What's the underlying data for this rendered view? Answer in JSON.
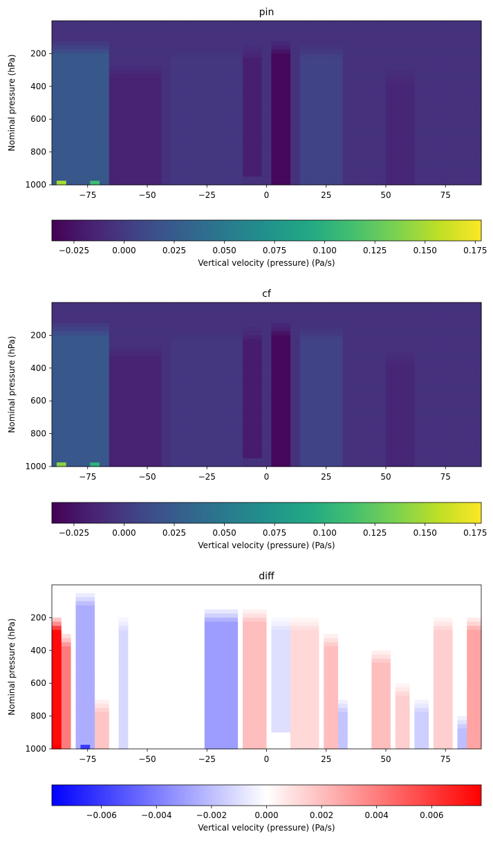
{
  "chart_data": [
    {
      "type": "heatmap",
      "title": "pin",
      "xlabel": "",
      "ylabel": "Nominal pressure (hPa)",
      "xlim": [
        -90,
        90
      ],
      "ylim": [
        1000,
        0
      ],
      "xticks": [
        -75,
        -50,
        -25,
        0,
        25,
        50,
        75
      ],
      "yticks": [
        200,
        400,
        600,
        800,
        1000
      ],
      "colormap": "viridis",
      "colorbar": {
        "label": "Vertical velocity (pressure) (Pa/s)",
        "vmin": -0.036,
        "vmax": 0.178,
        "ticks": [
          -0.025,
          0.0,
          0.025,
          0.05,
          0.075,
          0.1,
          0.125,
          0.15,
          0.175
        ],
        "tick_labels": [
          "−0.025",
          "0.000",
          "0.025",
          "0.050",
          "0.075",
          "0.100",
          "0.125",
          "0.150",
          "0.175"
        ]
      },
      "features": {
        "background": -0.006,
        "bands": [
          {
            "lat": [
              -90,
              -67
            ],
            "value": 0.022,
            "p": [
              130,
              1000
            ]
          },
          {
            "lat": [
              -65,
              -45
            ],
            "value": -0.016,
            "p": [
              270,
              1000
            ]
          },
          {
            "lat": [
              -40,
              -10
            ],
            "value": -0.002,
            "p": [
              170,
              1000
            ]
          },
          {
            "lat": [
              -10,
              -3
            ],
            "value": -0.018,
            "p": [
              160,
              960
            ]
          },
          {
            "lat": [
              3,
              10
            ],
            "value": -0.032,
            "p": [
              130,
              1000
            ]
          },
          {
            "lat": [
              15,
              32
            ],
            "value": 0.006,
            "p": [
              150,
              1000
            ]
          },
          {
            "lat": [
              50,
              62
            ],
            "value": -0.013,
            "p": [
              300,
              1000
            ]
          }
        ],
        "hotspots": [
          {
            "lat": -86,
            "p": 985,
            "value": 0.15
          },
          {
            "lat": -72,
            "p": 985,
            "value": 0.11
          }
        ]
      }
    },
    {
      "type": "heatmap",
      "title": "cf",
      "xlabel": "",
      "ylabel": "Nominal pressure (hPa)",
      "xlim": [
        -90,
        90
      ],
      "ylim": [
        1000,
        0
      ],
      "xticks": [
        -75,
        -50,
        -25,
        0,
        25,
        50,
        75
      ],
      "yticks": [
        200,
        400,
        600,
        800,
        1000
      ],
      "colormap": "viridis",
      "colorbar": {
        "label": "Vertical velocity (pressure) (Pa/s)",
        "vmin": -0.036,
        "vmax": 0.178,
        "ticks": [
          -0.025,
          0.0,
          0.025,
          0.05,
          0.075,
          0.1,
          0.125,
          0.15,
          0.175
        ],
        "tick_labels": [
          "−0.025",
          "0.000",
          "0.025",
          "0.050",
          "0.075",
          "0.100",
          "0.125",
          "0.150",
          "0.175"
        ]
      },
      "features": {
        "background": -0.006,
        "bands": [
          {
            "lat": [
              -90,
              -67
            ],
            "value": 0.022,
            "p": [
              130,
              1000
            ]
          },
          {
            "lat": [
              -65,
              -45
            ],
            "value": -0.016,
            "p": [
              270,
              1000
            ]
          },
          {
            "lat": [
              -40,
              -10
            ],
            "value": -0.002,
            "p": [
              170,
              1000
            ]
          },
          {
            "lat": [
              -10,
              -3
            ],
            "value": -0.02,
            "p": [
              160,
              960
            ]
          },
          {
            "lat": [
              3,
              10
            ],
            "value": -0.032,
            "p": [
              130,
              1000
            ]
          },
          {
            "lat": [
              15,
              32
            ],
            "value": 0.006,
            "p": [
              150,
              1000
            ]
          },
          {
            "lat": [
              50,
              62
            ],
            "value": -0.013,
            "p": [
              300,
              1000
            ]
          }
        ],
        "hotspots": [
          {
            "lat": -86,
            "p": 985,
            "value": 0.14
          },
          {
            "lat": -72,
            "p": 985,
            "value": 0.1
          }
        ]
      }
    },
    {
      "type": "heatmap",
      "title": "diff",
      "xlabel": "",
      "ylabel": "Nominal pressure (hPa)",
      "xlim": [
        -90,
        90
      ],
      "ylim": [
        1000,
        0
      ],
      "xticks": [
        -75,
        -50,
        -25,
        0,
        25,
        50,
        75
      ],
      "yticks": [
        200,
        400,
        600,
        800,
        1000
      ],
      "colormap": "bwr",
      "colorbar": {
        "label": "Vertical velocity (pressure) (Pa/s)",
        "vmin": -0.0078,
        "vmax": 0.0078,
        "ticks": [
          -0.006,
          -0.004,
          -0.002,
          0.0,
          0.002,
          0.004,
          0.006
        ],
        "tick_labels": [
          "−0.006",
          "−0.004",
          "−0.002",
          "0.000",
          "0.002",
          "0.004",
          "0.006"
        ]
      },
      "features": {
        "background": 0.0,
        "bands": [
          {
            "lat": [
              -90,
              -86
            ],
            "value": 0.0075,
            "p": [
              200,
              1000
            ]
          },
          {
            "lat": [
              -86,
              -83
            ],
            "value": 0.004,
            "p": [
              300,
              1000
            ]
          },
          {
            "lat": [
              -80,
              -73
            ],
            "value": -0.0025,
            "p": [
              50,
              1000
            ]
          },
          {
            "lat": [
              -72,
              -67
            ],
            "value": 0.0018,
            "p": [
              700,
              1000
            ]
          },
          {
            "lat": [
              -62,
              -58
            ],
            "value": -0.0012,
            "p": [
              200,
              1000
            ]
          },
          {
            "lat": [
              -25,
              -13
            ],
            "value": -0.003,
            "p": [
              150,
              1000
            ]
          },
          {
            "lat": [
              -9,
              0
            ],
            "value": 0.002,
            "p": [
              150,
              1000
            ]
          },
          {
            "lat": [
              3,
              9
            ],
            "value": -0.001,
            "p": [
              200,
              900
            ]
          },
          {
            "lat": [
              10,
              22
            ],
            "value": 0.0012,
            "p": [
              200,
              1000
            ]
          },
          {
            "lat": [
              25,
              30
            ],
            "value": 0.002,
            "p": [
              300,
              1000
            ]
          },
          {
            "lat": [
              30,
              34
            ],
            "value": -0.0018,
            "p": [
              700,
              1000
            ]
          },
          {
            "lat": [
              45,
              52
            ],
            "value": 0.002,
            "p": [
              400,
              1000
            ]
          },
          {
            "lat": [
              54,
              60
            ],
            "value": 0.0015,
            "p": [
              600,
              1000
            ]
          },
          {
            "lat": [
              63,
              68
            ],
            "value": -0.0015,
            "p": [
              700,
              1000
            ]
          },
          {
            "lat": [
              70,
              78
            ],
            "value": 0.0015,
            "p": [
              200,
              1000
            ]
          },
          {
            "lat": [
              80,
              84
            ],
            "value": -0.002,
            "p": [
              800,
              1000
            ]
          },
          {
            "lat": [
              84,
              90
            ],
            "value": 0.0028,
            "p": [
              200,
              1000
            ]
          }
        ],
        "hotspots": [
          {
            "lat": -76,
            "p": 985,
            "value": -0.006
          },
          {
            "lat": -88,
            "p": 985,
            "value": 0.0078
          }
        ]
      }
    }
  ]
}
